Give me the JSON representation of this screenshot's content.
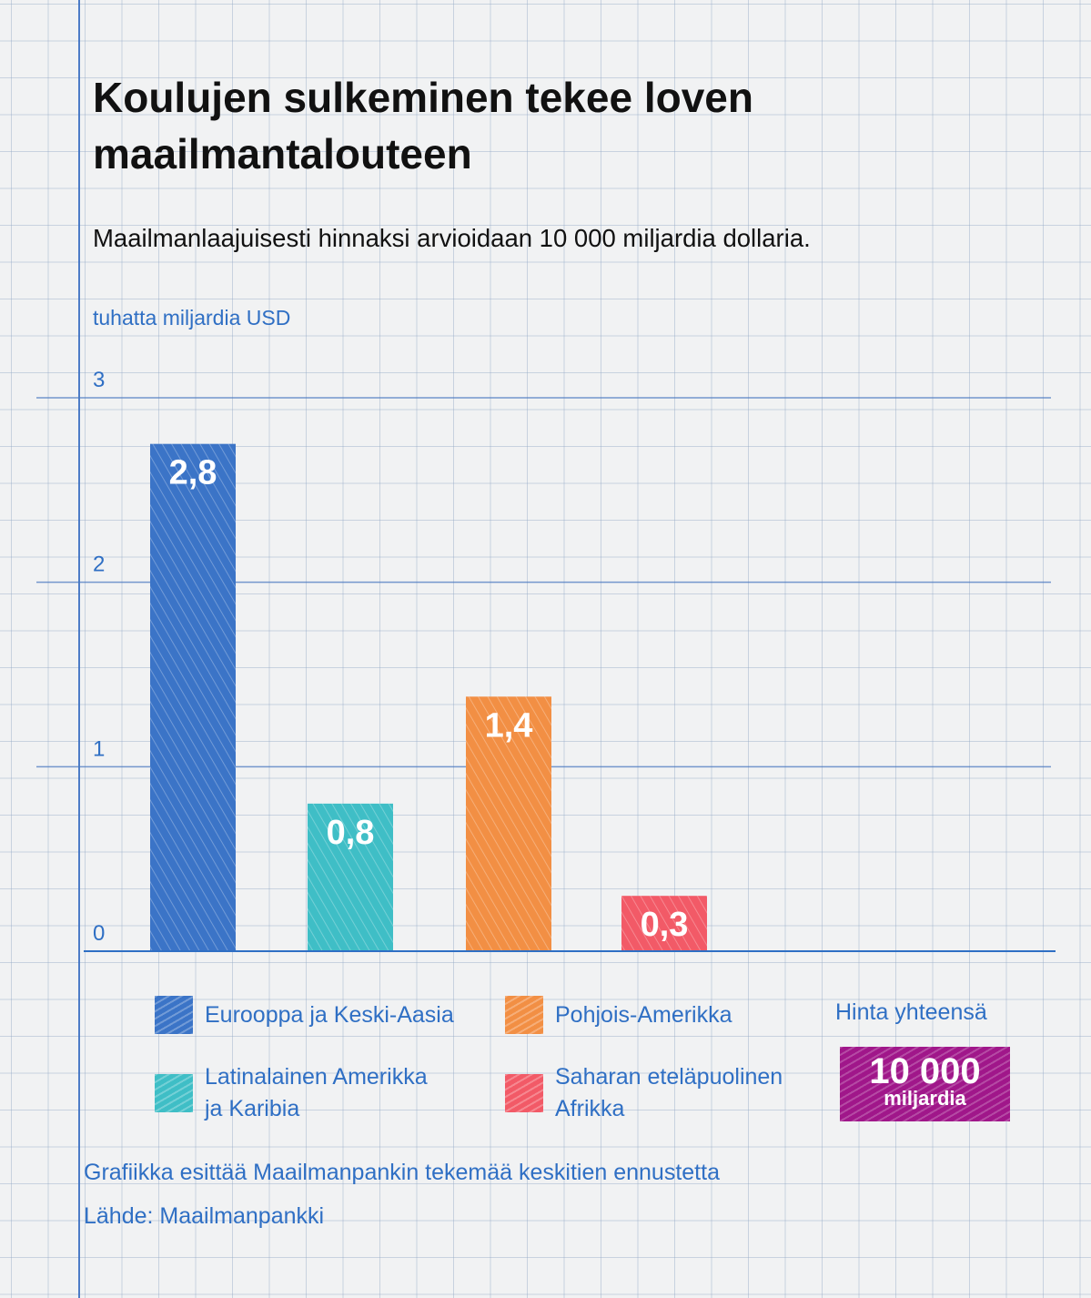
{
  "title": "Koulujen sulkeminen tekee loven\nmaailmantalouteen",
  "subtitle": "Maailmanlaajuisesti hinnaksi arvioidaan 10 000 miljardia dollaria.",
  "colors": {
    "europe": "#3b74c7",
    "latin": "#3fbec6",
    "north": "#f28f44",
    "africa": "#f25a67",
    "total": "#a0178a",
    "axis": "#2f6fc4"
  },
  "chart_data": {
    "type": "bar",
    "ylabel": "tuhatta miljardia USD",
    "ylim": [
      0,
      3
    ],
    "yticks": [
      "0",
      "1",
      "2",
      "3"
    ],
    "categories": [
      "Eurooppa ja Keski-Aasia",
      "Latinalainen Amerikka ja Karibia",
      "Pohjois-Amerikka",
      "Saharan eteläpuolinen Afrikka"
    ],
    "values": [
      2.75,
      0.8,
      1.38,
      0.3
    ],
    "value_labels": [
      "2,8",
      "0,8",
      "1,4",
      "0,3"
    ],
    "grid": true
  },
  "legend": {
    "europe": "Eurooppa ja Keski-Aasia",
    "north": "Pohjois-Amerikka",
    "latin": "Latinalainen Amerikka\nja Karibia",
    "africa": "Saharan eteläpuolinen\nAfrikka"
  },
  "total": {
    "label": "Hinta yhteensä",
    "value": "10 000",
    "unit": "miljardia"
  },
  "notes": {
    "forecast": "Grafiikka esittää Maailmanpankin tekemää keskitien ennustetta",
    "source": "Lähde: Maailmanpankki"
  }
}
